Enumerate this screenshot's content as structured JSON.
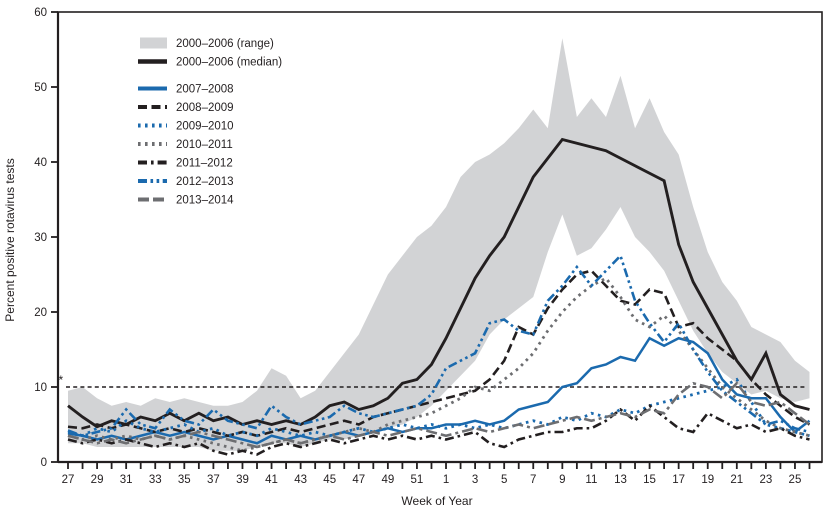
{
  "figure": {
    "y_axis_label": "Percent positive rotavirus tests",
    "x_axis_label": "Week of Year",
    "footnote_marker": "*",
    "colors": {
      "black": "#231f20",
      "blue": "#1b6aae",
      "gray_line": "#6d6e71",
      "band_fill": "#d2d3d5"
    }
  },
  "chart_data": {
    "type": "line",
    "title": "",
    "xlabel": "Week of Year",
    "ylabel": "Percent positive rotavirus tests",
    "ylim": [
      0,
      60
    ],
    "y_ticks": [
      0,
      10,
      20,
      30,
      40,
      50,
      60
    ],
    "x_weeks": [
      27,
      28,
      29,
      30,
      31,
      32,
      33,
      34,
      35,
      36,
      37,
      38,
      39,
      40,
      41,
      42,
      43,
      44,
      45,
      46,
      47,
      48,
      49,
      50,
      51,
      52,
      1,
      2,
      3,
      4,
      5,
      6,
      7,
      8,
      9,
      10,
      11,
      12,
      13,
      14,
      15,
      16,
      17,
      18,
      19,
      20,
      21,
      22,
      23,
      24,
      25,
      26
    ],
    "x_tick_labels": [
      "27",
      "29",
      "31",
      "33",
      "35",
      "37",
      "39",
      "41",
      "43",
      "45",
      "47",
      "49",
      "51",
      "1",
      "3",
      "5",
      "7",
      "9",
      "11",
      "13",
      "15",
      "17",
      "19",
      "21",
      "23",
      "25"
    ],
    "grid": false,
    "legend_position": "upper-left",
    "threshold": {
      "value": 10,
      "style": "dotted",
      "marker": "*"
    },
    "band": {
      "name": "2000–2006 (range)",
      "fill": "#d2d3d5",
      "high": [
        9.5,
        10,
        8.5,
        7.5,
        8,
        7.5,
        8.5,
        8,
        8.5,
        8,
        7.5,
        7.5,
        8,
        9.5,
        12.5,
        11.5,
        8.5,
        9.5,
        12,
        14.5,
        17,
        21,
        25,
        27.5,
        30,
        31.5,
        34,
        38,
        40,
        41,
        42.5,
        44.5,
        47,
        44.5,
        56.5,
        46,
        48.5,
        46,
        51.5,
        44.5,
        48.5,
        44,
        41,
        34,
        28,
        24,
        21.5,
        18,
        17,
        16,
        13.5,
        12
      ],
      "low": [
        2.5,
        2.5,
        2,
        2,
        2,
        2,
        2,
        2,
        2,
        2,
        1.5,
        1.5,
        1.5,
        2,
        2.5,
        2.5,
        2,
        2.5,
        3,
        3,
        3.5,
        4,
        4.5,
        5,
        6,
        7.5,
        9.5,
        11.5,
        13.5,
        17,
        19,
        20.5,
        22,
        28,
        33,
        27.5,
        28.5,
        31,
        34,
        30,
        28,
        25.5,
        21.5,
        17.5,
        14.5,
        12,
        10.5,
        9,
        9.5,
        8.5,
        8,
        8.5
      ]
    },
    "series": [
      {
        "name": "2000–2006 (median)",
        "color": "#231f20",
        "style": "solid",
        "width": 2.9,
        "values": [
          7.5,
          6,
          4.7,
          5.5,
          5,
          6,
          5.5,
          6.5,
          5.5,
          6.5,
          5.5,
          6,
          5,
          5.5,
          5,
          5.5,
          5,
          6,
          7.5,
          8,
          7,
          7.5,
          8.5,
          10.5,
          11,
          13,
          16.5,
          20.5,
          24.5,
          27.5,
          30,
          34,
          38,
          40.5,
          43,
          42.5,
          42,
          41.5,
          40.5,
          39.5,
          38.5,
          37.5,
          29,
          24,
          20.5,
          17,
          13.5,
          11,
          14.5,
          9,
          7.5,
          7
        ]
      },
      {
        "name": "2007–2008",
        "color": "#1b6aae",
        "style": "solid",
        "width": 2.5,
        "values": [
          3.8,
          3.5,
          3,
          3.5,
          3,
          3.5,
          4,
          3.5,
          4,
          3.5,
          3,
          3.5,
          3,
          2.5,
          3.5,
          3,
          3.5,
          3,
          3.5,
          4,
          3.5,
          4,
          4.5,
          4,
          4.5,
          4.5,
          5,
          5,
          5.5,
          5,
          5.5,
          7,
          7.5,
          8,
          10,
          10.5,
          12.5,
          13,
          14,
          13.5,
          16.5,
          15.5,
          16.5,
          16,
          14.5,
          11,
          9,
          8.5,
          8.5,
          6,
          4,
          5.5
        ]
      },
      {
        "name": "2008–2009",
        "color": "#231f20",
        "style": "dash",
        "width": 2.6,
        "values": [
          4.7,
          4.5,
          5,
          4.5,
          5,
          4.5,
          4,
          4.5,
          4,
          4.5,
          4,
          3.5,
          4,
          3.5,
          4,
          4.5,
          4,
          4.5,
          5,
          5.5,
          5,
          6,
          6.5,
          7,
          7.5,
          8,
          8.5,
          9,
          9.5,
          11,
          13.5,
          18,
          17,
          20.5,
          23,
          25,
          25.5,
          23.5,
          21.5,
          21,
          23,
          22.5,
          18,
          18.5,
          16.5,
          15,
          13.5,
          11,
          9,
          7.5,
          6,
          5
        ]
      },
      {
        "name": "2009–2010",
        "color": "#1b6aae",
        "style": "dot",
        "width": 2.8,
        "values": [
          4,
          3.5,
          4.5,
          4,
          5.5,
          4.5,
          4,
          4.5,
          5,
          4,
          4.5,
          3.5,
          4,
          3.5,
          4.5,
          4,
          3.5,
          4,
          3.5,
          4,
          4.5,
          4,
          4.5,
          5,
          4.5,
          5,
          4.5,
          5,
          4.5,
          5,
          4.5,
          5,
          5.5,
          5,
          6,
          5.5,
          6.5,
          6,
          7,
          6.5,
          7.5,
          8,
          8.5,
          9,
          9.5,
          10,
          11,
          8,
          5,
          4.5,
          4,
          3.5
        ]
      },
      {
        "name": "2010–2011",
        "color": "#6d6e71",
        "style": "dot",
        "width": 2.8,
        "values": [
          3.5,
          3,
          3.5,
          3,
          3.5,
          3,
          3.5,
          3,
          3.5,
          3,
          2.5,
          2,
          1.5,
          2,
          2.5,
          3,
          2.5,
          3,
          3.5,
          4,
          4.5,
          4,
          5,
          5.5,
          6,
          6.5,
          7.5,
          8.5,
          10,
          9.5,
          11,
          12.5,
          14.5,
          17.5,
          20,
          22,
          23.5,
          24.5,
          22,
          19,
          18,
          19.5,
          17.5,
          15,
          12.5,
          10,
          8.5,
          7,
          5.5,
          4.5,
          4,
          3.5
        ]
      },
      {
        "name": "2011–2012",
        "color": "#231f20",
        "style": "dashdot",
        "width": 2.6,
        "values": [
          3,
          2.5,
          3,
          2.5,
          3,
          2.5,
          2,
          2.5,
          2,
          2.5,
          1.5,
          1,
          1.5,
          1,
          2,
          2.5,
          2,
          2.5,
          3,
          2.5,
          3,
          3.5,
          3,
          3.5,
          3,
          3.5,
          3,
          3.5,
          4,
          2.5,
          2,
          3,
          3.5,
          4,
          4,
          4.5,
          4.5,
          5.5,
          7,
          5.5,
          7.5,
          6,
          4.5,
          4,
          6.5,
          5.5,
          4.5,
          5,
          4,
          4.5,
          3.5,
          3
        ]
      },
      {
        "name": "2012–2013",
        "color": "#1b6aae",
        "style": "dashdotdot",
        "width": 2.6,
        "values": [
          4.2,
          3.5,
          4,
          4.5,
          7,
          5,
          4.5,
          7,
          5.5,
          5,
          7,
          5.5,
          5,
          4.5,
          7.5,
          6,
          5,
          5.5,
          6,
          7.5,
          6.5,
          6,
          6.5,
          7,
          7.5,
          9,
          12.5,
          13.5,
          14.5,
          18.5,
          19,
          17.5,
          17,
          21.5,
          23.5,
          26,
          23.5,
          25.5,
          27.5,
          21.5,
          18.5,
          16,
          18.5,
          15,
          12,
          9.5,
          8,
          6.5,
          5,
          5.5,
          4.5,
          4
        ]
      },
      {
        "name": "2013–2014",
        "color": "#6d6e71",
        "style": "longdashdot",
        "width": 2.6,
        "values": [
          3.5,
          3,
          2.5,
          3,
          2.5,
          3,
          3.5,
          3,
          3.5,
          4,
          3.5,
          3,
          2.5,
          2,
          2.5,
          3,
          2.5,
          3,
          3.5,
          3,
          3.5,
          4,
          3.5,
          4,
          4.5,
          4,
          3.5,
          4,
          4.5,
          4,
          4.5,
          5,
          4.5,
          5,
          5.5,
          6,
          5.5,
          6,
          6.5,
          6,
          7,
          6.5,
          9,
          10.5,
          10,
          8.5,
          10.5,
          8,
          7.5,
          8,
          6.5,
          5
        ]
      }
    ]
  }
}
